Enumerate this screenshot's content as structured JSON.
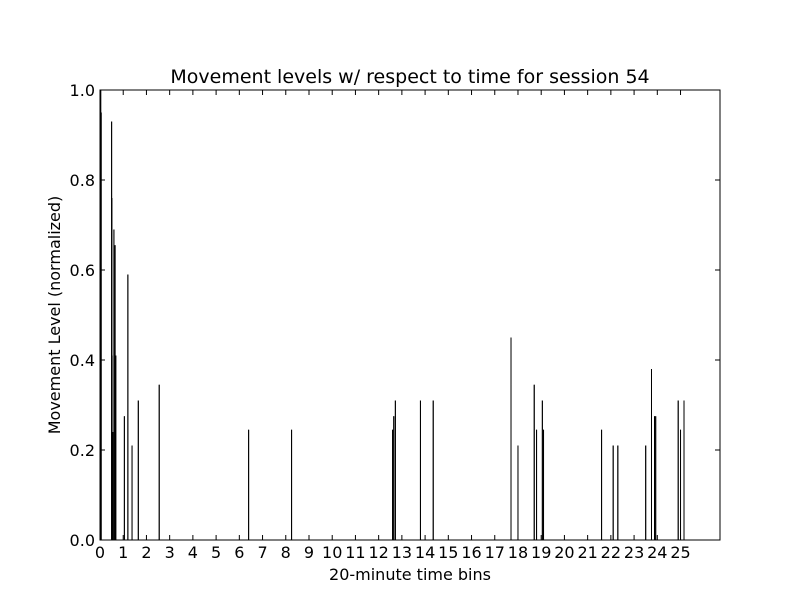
{
  "chart_data": {
    "type": "line",
    "title": "Movement levels w/ respect to time for session 54",
    "xlabel": "20-minute time bins",
    "ylabel": "Movement Level (normalized)",
    "xlim": [
      0,
      26.7
    ],
    "ylim": [
      0.0,
      1.0
    ],
    "xticks": [
      "0",
      "1",
      "2",
      "3",
      "4",
      "5",
      "6",
      "7",
      "8",
      "9",
      "10",
      "11",
      "12",
      "13",
      "14",
      "15",
      "16",
      "17",
      "18",
      "19",
      "20",
      "21",
      "22",
      "23",
      "24",
      "25"
    ],
    "yticks": [
      "0.0",
      "0.2",
      "0.4",
      "0.6",
      "0.8",
      "1.0"
    ],
    "grid": false,
    "legend": "none",
    "line_color": "#000000",
    "series": [
      {
        "x": [
          0.03,
          0.05,
          0.5,
          0.51,
          0.52,
          0.55,
          0.6,
          0.65,
          0.68,
          1.05,
          1.2,
          1.38,
          1.65,
          2.55,
          6.4,
          8.25,
          12.6,
          12.65,
          12.72,
          13.8,
          14.35,
          17.7,
          18.0,
          18.7,
          18.8,
          19.05,
          19.1,
          21.6,
          22.1,
          22.3,
          23.5,
          23.75,
          23.88,
          23.93,
          24.9,
          25.0,
          25.15
        ],
        "values": [
          1.0,
          0.95,
          0.93,
          0.76,
          0.41,
          0.24,
          0.69,
          0.655,
          0.41,
          0.275,
          0.59,
          0.21,
          0.31,
          0.345,
          0.245,
          0.245,
          0.245,
          0.275,
          0.31,
          0.31,
          0.31,
          0.45,
          0.21,
          0.345,
          0.245,
          0.31,
          0.245,
          0.245,
          0.21,
          0.21,
          0.21,
          0.38,
          0.275,
          0.275,
          0.31,
          0.245,
          0.31
        ]
      }
    ]
  }
}
